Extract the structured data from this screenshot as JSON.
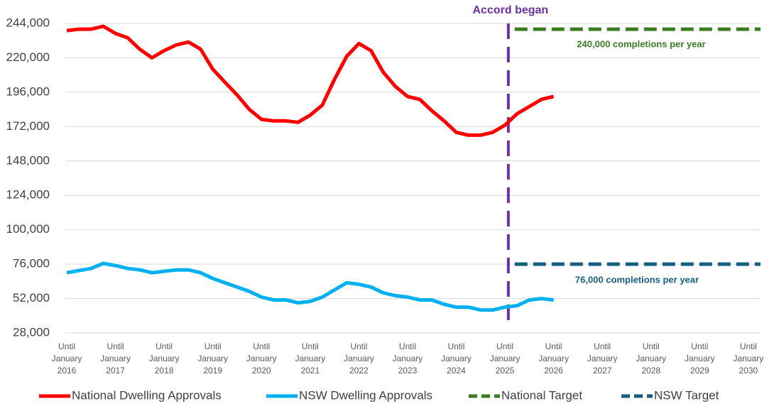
{
  "chart_data": {
    "type": "line",
    "xlim": [
      2016,
      2030.25
    ],
    "xticks": [
      {
        "value": 2016,
        "label": "Until January 2016"
      },
      {
        "value": 2017,
        "label": "Until January 2017"
      },
      {
        "value": 2018,
        "label": "Until January 2018"
      },
      {
        "value": 2019,
        "label": "Until January 2019"
      },
      {
        "value": 2020,
        "label": "Until January 2020"
      },
      {
        "value": 2021,
        "label": "Until January 2021"
      },
      {
        "value": 2022,
        "label": "Until January 2022"
      },
      {
        "value": 2023,
        "label": "Until January 2023"
      },
      {
        "value": 2024,
        "label": "Until January 2024"
      },
      {
        "value": 2025,
        "label": "Until January 2025"
      },
      {
        "value": 2026,
        "label": "Until January 2026"
      },
      {
        "value": 2027,
        "label": "Until January 2027"
      },
      {
        "value": 2028,
        "label": "Until January 2028"
      },
      {
        "value": 2029,
        "label": "Until January 2029"
      },
      {
        "value": 2030,
        "label": "Until January 2030"
      }
    ],
    "ylim": [
      28000,
      244000
    ],
    "yticks": [
      {
        "value": 28000,
        "label": "28,000"
      },
      {
        "value": 52000,
        "label": "52,000"
      },
      {
        "value": 76000,
        "label": "76,000"
      },
      {
        "value": 100000,
        "label": "100,000"
      },
      {
        "value": 124000,
        "label": "124,000"
      },
      {
        "value": 148000,
        "label": "148,000"
      },
      {
        "value": 172000,
        "label": "172,000"
      },
      {
        "value": 196000,
        "label": "196,000"
      },
      {
        "value": 220000,
        "label": "220,000"
      },
      {
        "value": 244000,
        "label": "244,000"
      }
    ],
    "grid": true,
    "legend": "bottom",
    "series": [
      {
        "name": "National Dwelling Approvals",
        "color": "#ff0000",
        "dashed": false,
        "x": [
          2016,
          2016.25,
          2016.5,
          2016.75,
          2017,
          2017.25,
          2017.5,
          2017.75,
          2018,
          2018.25,
          2018.5,
          2018.75,
          2019,
          2019.25,
          2019.5,
          2019.75,
          2020,
          2020.25,
          2020.5,
          2020.75,
          2021,
          2021.25,
          2021.5,
          2021.75,
          2022,
          2022.25,
          2022.5,
          2022.75,
          2023,
          2023.25,
          2023.5,
          2023.75,
          2024,
          2024.25,
          2024.5,
          2024.75,
          2025,
          2025.25,
          2025.5,
          2025.75,
          2026
        ],
        "values": [
          239000,
          240000,
          240000,
          242000,
          237000,
          234000,
          226000,
          220000,
          225000,
          229000,
          231000,
          226000,
          212000,
          203000,
          194000,
          184000,
          177000,
          176000,
          176000,
          175000,
          180000,
          187000,
          205000,
          221000,
          230000,
          225000,
          210000,
          200000,
          193000,
          191000,
          183000,
          176000,
          168000,
          166000,
          166000,
          168000,
          173000,
          181000,
          186000,
          191000,
          193000
        ]
      },
      {
        "name": "NSW Dwelling Approvals",
        "color": "#00b0f0",
        "dashed": false,
        "x": [
          2016,
          2016.25,
          2016.5,
          2016.75,
          2017,
          2017.25,
          2017.5,
          2017.75,
          2018,
          2018.25,
          2018.5,
          2018.75,
          2019,
          2019.25,
          2019.5,
          2019.75,
          2020,
          2020.25,
          2020.5,
          2020.75,
          2021,
          2021.25,
          2021.5,
          2021.75,
          2022,
          2022.25,
          2022.5,
          2022.75,
          2023,
          2023.25,
          2023.5,
          2023.75,
          2024,
          2024.25,
          2024.5,
          2024.75,
          2025,
          2025.25,
          2025.5,
          2025.75,
          2026
        ],
        "values": [
          70000,
          71500,
          73000,
          76500,
          75000,
          73000,
          72000,
          70000,
          71000,
          72000,
          72000,
          70000,
          66000,
          63000,
          60000,
          57000,
          53000,
          51000,
          51000,
          49000,
          50000,
          53000,
          58000,
          63000,
          62000,
          60000,
          56000,
          54000,
          53000,
          51000,
          51000,
          48000,
          46000,
          46000,
          44000,
          44000,
          46000,
          47000,
          51000,
          52000,
          51000
        ]
      },
      {
        "name": "National Target",
        "color": "#3a7d22",
        "dashed": true,
        "x": [
          2025.2,
          2030.25
        ],
        "values": [
          240000,
          240000
        ]
      },
      {
        "name": "NSW Target",
        "color": "#156082",
        "dashed": true,
        "x": [
          2025.2,
          2030.25
        ],
        "values": [
          76000,
          76000
        ]
      }
    ],
    "annotations": [
      {
        "text": "Accord began",
        "x": 2025.07,
        "color": "#7030a0"
      },
      {
        "text": "240,000 completions per year",
        "color": "#3a7d22"
      },
      {
        "text": "76,000 completions per year",
        "color": "#156082"
      }
    ]
  }
}
